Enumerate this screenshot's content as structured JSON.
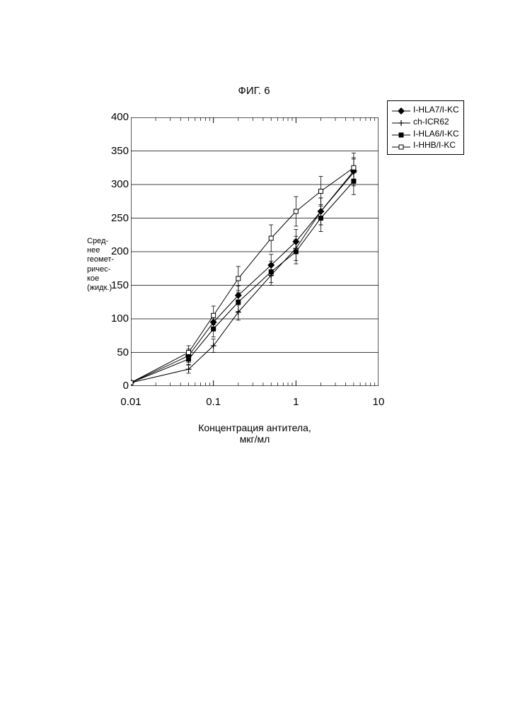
{
  "title": "ФИГ. 6",
  "chart": {
    "type": "line",
    "background_color": "#ffffff",
    "plot_border_color": "#000000",
    "grid_color": "#000000",
    "xscale": "log",
    "xlim": [
      0.01,
      10
    ],
    "ylim": [
      0,
      400
    ],
    "ytick_step": 50,
    "yticks": [
      0,
      50,
      100,
      150,
      200,
      250,
      300,
      350,
      400
    ],
    "xticks": [
      0.01,
      0.1,
      1,
      10
    ],
    "xtick_labels": [
      "0.01",
      "0.1",
      "1",
      "10"
    ],
    "xlabel": "Концентрация антитела,\nмкг/мл",
    "ylabel_lines": [
      "Сред-",
      "нее",
      "геомет-",
      "ричес-",
      "кое",
      "(жидк.)"
    ],
    "title_fontsize": 15,
    "label_fontsize": 14,
    "tick_fontsize": 15,
    "line_color": "#000000",
    "line_width": 1,
    "error_cap": 6,
    "series": [
      {
        "label": "I-HLA7/I-KC",
        "marker": "filled-diamond",
        "x": [
          0.01,
          0.05,
          0.1,
          0.2,
          0.5,
          1.0,
          2.0,
          5.0
        ],
        "y": [
          5,
          45,
          95,
          135,
          180,
          215,
          260,
          320
        ],
        "yerr": [
          0,
          10,
          12,
          14,
          16,
          18,
          20,
          20
        ]
      },
      {
        "label": "ch-ICR62",
        "marker": "plus",
        "x": [
          0.01,
          0.05,
          0.1,
          0.2,
          0.5,
          1.0,
          2.0,
          5.0
        ],
        "y": [
          5,
          25,
          60,
          110,
          165,
          205,
          260,
          318
        ],
        "yerr": [
          0,
          6,
          10,
          12,
          15,
          18,
          20,
          20
        ]
      },
      {
        "label": "I-HLA6/I-KC",
        "marker": "filled-square",
        "x": [
          0.01,
          0.05,
          0.1,
          0.2,
          0.5,
          1.0,
          2.0,
          5.0
        ],
        "y": [
          5,
          40,
          85,
          125,
          170,
          200,
          250,
          305
        ],
        "yerr": [
          0,
          8,
          12,
          14,
          16,
          18,
          20,
          20
        ]
      },
      {
        "label": "I-HHB/I-KC",
        "marker": "open-square",
        "x": [
          0.01,
          0.05,
          0.1,
          0.2,
          0.5,
          1.0,
          2.0,
          5.0
        ],
        "y": [
          5,
          50,
          105,
          160,
          220,
          260,
          290,
          325
        ],
        "yerr": [
          0,
          10,
          14,
          18,
          20,
          22,
          22,
          22
        ]
      }
    ]
  },
  "legend": {
    "items": [
      {
        "label": "I-HLA7/I-KC",
        "marker": "filled-diamond"
      },
      {
        "label": "ch-ICR62",
        "marker": "plus"
      },
      {
        "label": "I-HLA6/I-KC",
        "marker": "filled-square"
      },
      {
        "label": "I-HHB/I-KC",
        "marker": "open-square"
      }
    ],
    "fontsize": 12,
    "border_color": "#000000",
    "background_color": "#ffffff"
  }
}
